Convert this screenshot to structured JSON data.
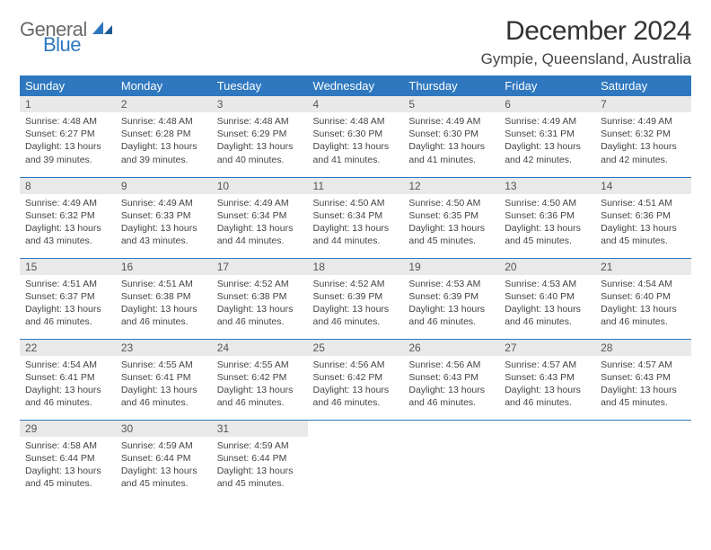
{
  "logo": {
    "general": "General",
    "blue": "Blue"
  },
  "title": "December 2024",
  "location": "Gympie, Queensland, Australia",
  "weekdays": [
    "Sunday",
    "Monday",
    "Tuesday",
    "Wednesday",
    "Thursday",
    "Friday",
    "Saturday"
  ],
  "colors": {
    "accent": "#2f78bf",
    "header_bg": "#2f78bf",
    "daynum_bg": "#e9e9e9"
  },
  "weeks": [
    [
      {
        "n": "1",
        "sr": "Sunrise: 4:48 AM",
        "ss": "Sunset: 6:27 PM",
        "d1": "Daylight: 13 hours",
        "d2": "and 39 minutes."
      },
      {
        "n": "2",
        "sr": "Sunrise: 4:48 AM",
        "ss": "Sunset: 6:28 PM",
        "d1": "Daylight: 13 hours",
        "d2": "and 39 minutes."
      },
      {
        "n": "3",
        "sr": "Sunrise: 4:48 AM",
        "ss": "Sunset: 6:29 PM",
        "d1": "Daylight: 13 hours",
        "d2": "and 40 minutes."
      },
      {
        "n": "4",
        "sr": "Sunrise: 4:48 AM",
        "ss": "Sunset: 6:30 PM",
        "d1": "Daylight: 13 hours",
        "d2": "and 41 minutes."
      },
      {
        "n": "5",
        "sr": "Sunrise: 4:49 AM",
        "ss": "Sunset: 6:30 PM",
        "d1": "Daylight: 13 hours",
        "d2": "and 41 minutes."
      },
      {
        "n": "6",
        "sr": "Sunrise: 4:49 AM",
        "ss": "Sunset: 6:31 PM",
        "d1": "Daylight: 13 hours",
        "d2": "and 42 minutes."
      },
      {
        "n": "7",
        "sr": "Sunrise: 4:49 AM",
        "ss": "Sunset: 6:32 PM",
        "d1": "Daylight: 13 hours",
        "d2": "and 42 minutes."
      }
    ],
    [
      {
        "n": "8",
        "sr": "Sunrise: 4:49 AM",
        "ss": "Sunset: 6:32 PM",
        "d1": "Daylight: 13 hours",
        "d2": "and 43 minutes."
      },
      {
        "n": "9",
        "sr": "Sunrise: 4:49 AM",
        "ss": "Sunset: 6:33 PM",
        "d1": "Daylight: 13 hours",
        "d2": "and 43 minutes."
      },
      {
        "n": "10",
        "sr": "Sunrise: 4:49 AM",
        "ss": "Sunset: 6:34 PM",
        "d1": "Daylight: 13 hours",
        "d2": "and 44 minutes."
      },
      {
        "n": "11",
        "sr": "Sunrise: 4:50 AM",
        "ss": "Sunset: 6:34 PM",
        "d1": "Daylight: 13 hours",
        "d2": "and 44 minutes."
      },
      {
        "n": "12",
        "sr": "Sunrise: 4:50 AM",
        "ss": "Sunset: 6:35 PM",
        "d1": "Daylight: 13 hours",
        "d2": "and 45 minutes."
      },
      {
        "n": "13",
        "sr": "Sunrise: 4:50 AM",
        "ss": "Sunset: 6:36 PM",
        "d1": "Daylight: 13 hours",
        "d2": "and 45 minutes."
      },
      {
        "n": "14",
        "sr": "Sunrise: 4:51 AM",
        "ss": "Sunset: 6:36 PM",
        "d1": "Daylight: 13 hours",
        "d2": "and 45 minutes."
      }
    ],
    [
      {
        "n": "15",
        "sr": "Sunrise: 4:51 AM",
        "ss": "Sunset: 6:37 PM",
        "d1": "Daylight: 13 hours",
        "d2": "and 46 minutes."
      },
      {
        "n": "16",
        "sr": "Sunrise: 4:51 AM",
        "ss": "Sunset: 6:38 PM",
        "d1": "Daylight: 13 hours",
        "d2": "and 46 minutes."
      },
      {
        "n": "17",
        "sr": "Sunrise: 4:52 AM",
        "ss": "Sunset: 6:38 PM",
        "d1": "Daylight: 13 hours",
        "d2": "and 46 minutes."
      },
      {
        "n": "18",
        "sr": "Sunrise: 4:52 AM",
        "ss": "Sunset: 6:39 PM",
        "d1": "Daylight: 13 hours",
        "d2": "and 46 minutes."
      },
      {
        "n": "19",
        "sr": "Sunrise: 4:53 AM",
        "ss": "Sunset: 6:39 PM",
        "d1": "Daylight: 13 hours",
        "d2": "and 46 minutes."
      },
      {
        "n": "20",
        "sr": "Sunrise: 4:53 AM",
        "ss": "Sunset: 6:40 PM",
        "d1": "Daylight: 13 hours",
        "d2": "and 46 minutes."
      },
      {
        "n": "21",
        "sr": "Sunrise: 4:54 AM",
        "ss": "Sunset: 6:40 PM",
        "d1": "Daylight: 13 hours",
        "d2": "and 46 minutes."
      }
    ],
    [
      {
        "n": "22",
        "sr": "Sunrise: 4:54 AM",
        "ss": "Sunset: 6:41 PM",
        "d1": "Daylight: 13 hours",
        "d2": "and 46 minutes."
      },
      {
        "n": "23",
        "sr": "Sunrise: 4:55 AM",
        "ss": "Sunset: 6:41 PM",
        "d1": "Daylight: 13 hours",
        "d2": "and 46 minutes."
      },
      {
        "n": "24",
        "sr": "Sunrise: 4:55 AM",
        "ss": "Sunset: 6:42 PM",
        "d1": "Daylight: 13 hours",
        "d2": "and 46 minutes."
      },
      {
        "n": "25",
        "sr": "Sunrise: 4:56 AM",
        "ss": "Sunset: 6:42 PM",
        "d1": "Daylight: 13 hours",
        "d2": "and 46 minutes."
      },
      {
        "n": "26",
        "sr": "Sunrise: 4:56 AM",
        "ss": "Sunset: 6:43 PM",
        "d1": "Daylight: 13 hours",
        "d2": "and 46 minutes."
      },
      {
        "n": "27",
        "sr": "Sunrise: 4:57 AM",
        "ss": "Sunset: 6:43 PM",
        "d1": "Daylight: 13 hours",
        "d2": "and 46 minutes."
      },
      {
        "n": "28",
        "sr": "Sunrise: 4:57 AM",
        "ss": "Sunset: 6:43 PM",
        "d1": "Daylight: 13 hours",
        "d2": "and 45 minutes."
      }
    ],
    [
      {
        "n": "29",
        "sr": "Sunrise: 4:58 AM",
        "ss": "Sunset: 6:44 PM",
        "d1": "Daylight: 13 hours",
        "d2": "and 45 minutes."
      },
      {
        "n": "30",
        "sr": "Sunrise: 4:59 AM",
        "ss": "Sunset: 6:44 PM",
        "d1": "Daylight: 13 hours",
        "d2": "and 45 minutes."
      },
      {
        "n": "31",
        "sr": "Sunrise: 4:59 AM",
        "ss": "Sunset: 6:44 PM",
        "d1": "Daylight: 13 hours",
        "d2": "and 45 minutes."
      },
      {
        "empty": true
      },
      {
        "empty": true
      },
      {
        "empty": true
      },
      {
        "empty": true
      }
    ]
  ]
}
